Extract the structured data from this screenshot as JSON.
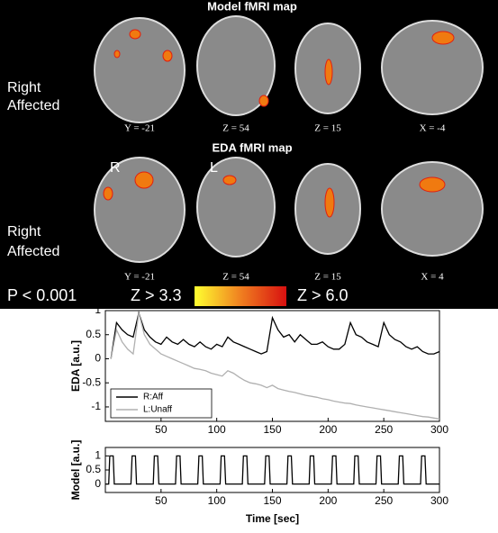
{
  "figure": {
    "panels": [
      {
        "title": "Model fMRI map",
        "side_label": [
          "Right",
          "Affected"
        ],
        "slices": [
          "Y = -21",
          "Z = 54",
          "Z = 15",
          "X = -4"
        ]
      },
      {
        "title": "EDA fMRI map",
        "side_label": [
          "Right",
          "Affected"
        ],
        "slices": [
          "Y = -21",
          "Z = 54",
          "Z = 15",
          "X = 4"
        ],
        "orientation": [
          "R",
          "L"
        ]
      }
    ],
    "threshold": "P < 0.001",
    "colorbar": [
      "Z > 3.3",
      "Z > 6.0"
    ]
  },
  "chart_data": [
    {
      "type": "line",
      "ylabel": "EDA [a.u.]",
      "xlim": [
        0,
        300
      ],
      "ylim": [
        -1.3,
        1
      ],
      "xticks": [
        50,
        100,
        150,
        200,
        250,
        300
      ],
      "yticks": [
        1,
        0.5,
        0,
        -0.5,
        -1
      ],
      "legend": "lower left",
      "x": [
        5,
        10,
        15,
        20,
        25,
        30,
        35,
        40,
        45,
        50,
        55,
        60,
        65,
        70,
        75,
        80,
        85,
        90,
        95,
        100,
        105,
        110,
        115,
        120,
        125,
        130,
        135,
        140,
        145,
        150,
        155,
        160,
        165,
        170,
        175,
        180,
        185,
        190,
        195,
        200,
        205,
        210,
        215,
        220,
        225,
        230,
        235,
        240,
        245,
        250,
        255,
        260,
        265,
        270,
        275,
        280,
        285,
        290,
        295,
        300
      ],
      "series": [
        {
          "name": "R:Aff",
          "color": "#000000",
          "values": [
            0.0,
            0.75,
            0.6,
            0.5,
            0.45,
            0.95,
            0.6,
            0.45,
            0.35,
            0.3,
            0.45,
            0.35,
            0.3,
            0.4,
            0.3,
            0.25,
            0.35,
            0.25,
            0.2,
            0.3,
            0.25,
            0.45,
            0.35,
            0.3,
            0.25,
            0.2,
            0.15,
            0.1,
            0.15,
            0.85,
            0.6,
            0.45,
            0.5,
            0.35,
            0.5,
            0.4,
            0.3,
            0.3,
            0.35,
            0.25,
            0.2,
            0.2,
            0.3,
            0.75,
            0.5,
            0.45,
            0.35,
            0.3,
            0.25,
            0.75,
            0.5,
            0.4,
            0.35,
            0.25,
            0.2,
            0.25,
            0.15,
            0.1,
            0.1,
            0.15
          ]
        },
        {
          "name": "L:Unaff",
          "color": "#b0b0b0",
          "values": [
            0.0,
            0.6,
            0.35,
            0.2,
            0.1,
            0.95,
            0.5,
            0.3,
            0.2,
            0.1,
            0.05,
            0.0,
            -0.05,
            -0.1,
            -0.15,
            -0.2,
            -0.22,
            -0.25,
            -0.3,
            -0.33,
            -0.36,
            -0.25,
            -0.3,
            -0.38,
            -0.45,
            -0.5,
            -0.52,
            -0.55,
            -0.6,
            -0.55,
            -0.62,
            -0.65,
            -0.68,
            -0.7,
            -0.73,
            -0.76,
            -0.78,
            -0.8,
            -0.83,
            -0.85,
            -0.88,
            -0.9,
            -0.92,
            -0.93,
            -0.96,
            -0.98,
            -1.0,
            -1.02,
            -1.04,
            -1.06,
            -1.08,
            -1.1,
            -1.12,
            -1.14,
            -1.16,
            -1.18,
            -1.2,
            -1.21,
            -1.23,
            -1.25
          ]
        }
      ]
    },
    {
      "type": "line",
      "ylabel": "Model [a.u.]",
      "xlabel": "Time [sec]",
      "xlim": [
        0,
        300
      ],
      "ylim": [
        -0.3,
        1.3
      ],
      "xticks": [
        50,
        100,
        150,
        200,
        250,
        300
      ],
      "yticks": [
        0,
        0.5,
        1
      ],
      "x": [
        0,
        3,
        4,
        7,
        8,
        23,
        24,
        27,
        28,
        43,
        44,
        47,
        48,
        63,
        64,
        67,
        68,
        83,
        84,
        87,
        88,
        103,
        104,
        107,
        108,
        123,
        124,
        127,
        128,
        143,
        144,
        147,
        148,
        163,
        164,
        167,
        168,
        183,
        184,
        187,
        188,
        203,
        204,
        207,
        208,
        223,
        224,
        227,
        228,
        243,
        244,
        247,
        248,
        263,
        264,
        267,
        268,
        283,
        284,
        287,
        288,
        300
      ],
      "series": [
        {
          "color": "#000000",
          "values": [
            0,
            0,
            1,
            1,
            0,
            0,
            1,
            1,
            0,
            0,
            1,
            1,
            0,
            0,
            1,
            1,
            0,
            0,
            1,
            1,
            0,
            0,
            1,
            1,
            0,
            0,
            1,
            1,
            0,
            0,
            1,
            1,
            0,
            0,
            1,
            1,
            0,
            0,
            1,
            1,
            0,
            0,
            1,
            1,
            0,
            0,
            1,
            1,
            0,
            0,
            1,
            1,
            0,
            0,
            1,
            1,
            0,
            0,
            1,
            1,
            0,
            0
          ]
        }
      ]
    }
  ]
}
